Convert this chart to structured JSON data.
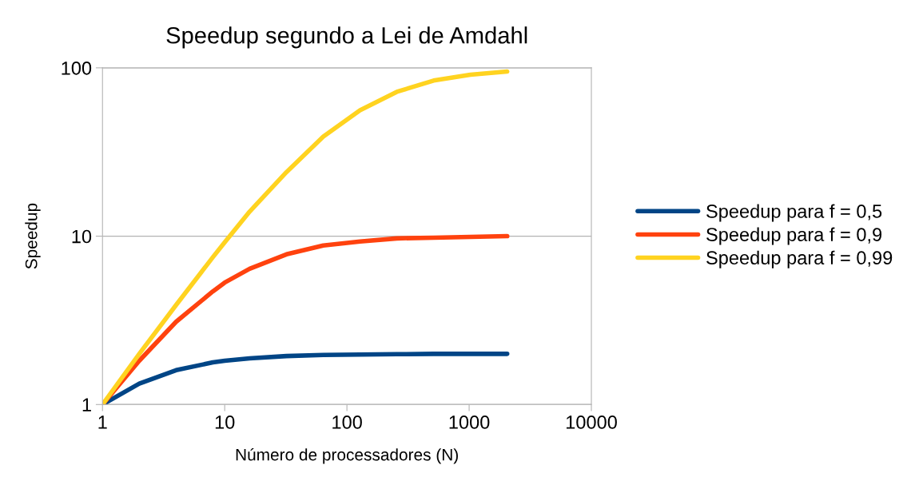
{
  "chart_data": {
    "type": "line",
    "title": "Speedup segundo a Lei de Amdahl",
    "xlabel": "Número de processadores (N)",
    "ylabel": "Speedup",
    "x": [
      1,
      2,
      4,
      8,
      10,
      16,
      32,
      64,
      128,
      256,
      512,
      1024,
      2048
    ],
    "series": [
      {
        "name": "Speedup para f = 0,5",
        "color": "#004586",
        "values": [
          1,
          1.33,
          1.6,
          1.78,
          1.82,
          1.88,
          1.94,
          1.97,
          1.98,
          1.99,
          2.0,
          2.0,
          2.0
        ]
      },
      {
        "name": "Speedup para f = 0,9",
        "color": "#ff420e",
        "values": [
          1,
          1.82,
          3.1,
          4.7,
          5.3,
          6.4,
          7.8,
          8.8,
          9.3,
          9.7,
          9.8,
          9.9,
          10.0
        ]
      },
      {
        "name": "Speedup para f = 0,99",
        "color": "#ffd320",
        "values": [
          1,
          2.0,
          3.9,
          7.5,
          9.2,
          14,
          24,
          39,
          56,
          72,
          84,
          91,
          95
        ]
      }
    ],
    "log": "xy",
    "xlim": [
      1,
      10000
    ],
    "xticks": [
      1,
      10,
      100,
      1000,
      10000
    ],
    "ylim": [
      1,
      100
    ],
    "yticks": [
      1,
      10,
      100
    ],
    "grid": "y",
    "legend": "right",
    "marker": "none",
    "line_style": "solid"
  }
}
